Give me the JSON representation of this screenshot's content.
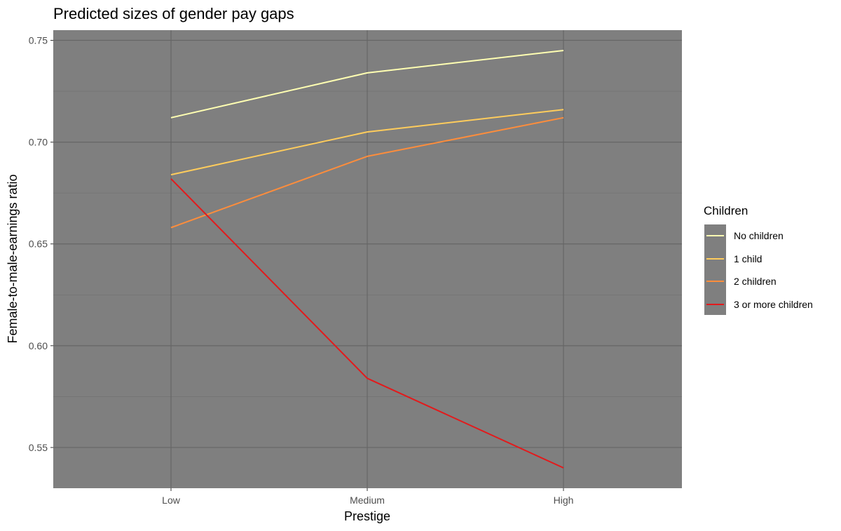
{
  "chart_data": {
    "type": "line",
    "title": "Predicted sizes of gender pay gaps",
    "xlabel": "Prestige",
    "ylabel": "Female-to-male-earnings ratio",
    "categories": [
      "Low",
      "Medium",
      "High"
    ],
    "ylim": [
      0.53,
      0.755
    ],
    "yticks": [
      0.55,
      0.6,
      0.65,
      0.7,
      0.75
    ],
    "ytick_labels": [
      "0.55",
      "0.60",
      "0.65",
      "0.70",
      "0.75"
    ],
    "grid": true,
    "panel_background": "#7f7f7f",
    "legend": {
      "title": "Children",
      "position": "right"
    },
    "series": [
      {
        "name": "No children",
        "color": "#ffffb2",
        "values": [
          0.712,
          0.734,
          0.745
        ]
      },
      {
        "name": "1 child",
        "color": "#fecc5c",
        "values": [
          0.684,
          0.705,
          0.716
        ]
      },
      {
        "name": "2 children",
        "color": "#fd8d3c",
        "values": [
          0.658,
          0.693,
          0.712
        ]
      },
      {
        "name": "3 or more children",
        "color": "#e31a1c",
        "values": [
          0.682,
          0.584,
          0.54
        ]
      }
    ]
  }
}
